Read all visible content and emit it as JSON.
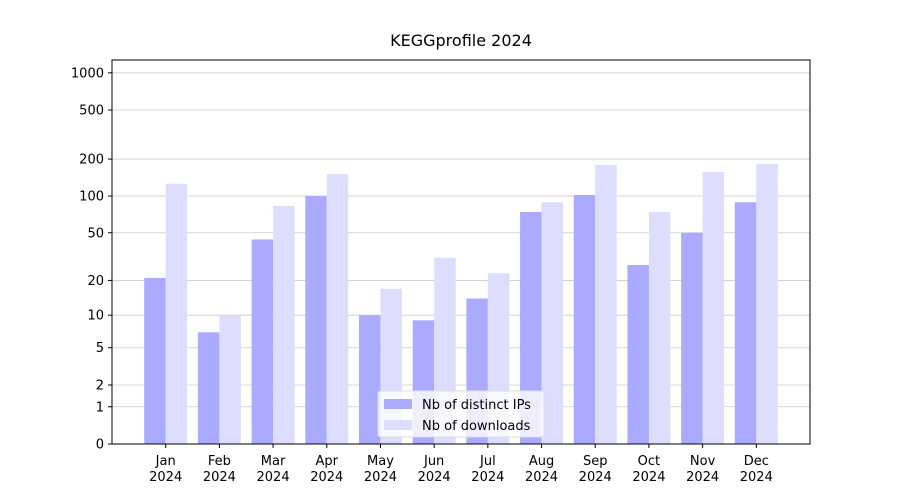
{
  "chart_data": {
    "type": "bar",
    "title": "KEGGprofile 2024",
    "categories": [
      "Jan\n2024",
      "Feb\n2024",
      "Mar\n2024",
      "Apr\n2024",
      "May\n2024",
      "Jun\n2024",
      "Jul\n2024",
      "Aug\n2024",
      "Sep\n2024",
      "Oct\n2024",
      "Nov\n2024",
      "Dec\n2024"
    ],
    "series": [
      {
        "name": "Nb of distinct IPs",
        "color": "#aaaaff",
        "values": [
          21,
          7,
          44,
          100,
          10,
          9,
          14,
          74,
          102,
          27,
          50,
          89
        ]
      },
      {
        "name": "Nb of downloads",
        "color": "#ddddff",
        "values": [
          126,
          10,
          83,
          151,
          17,
          31,
          23,
          89,
          179,
          74,
          157,
          182
        ]
      }
    ],
    "y_scale": "log1p",
    "ylim": [
      0,
      1270
    ],
    "yticks": [
      0,
      1,
      2,
      5,
      10,
      20,
      50,
      100,
      200,
      500,
      1000
    ],
    "grid": true,
    "legend_loc": "lower center"
  }
}
